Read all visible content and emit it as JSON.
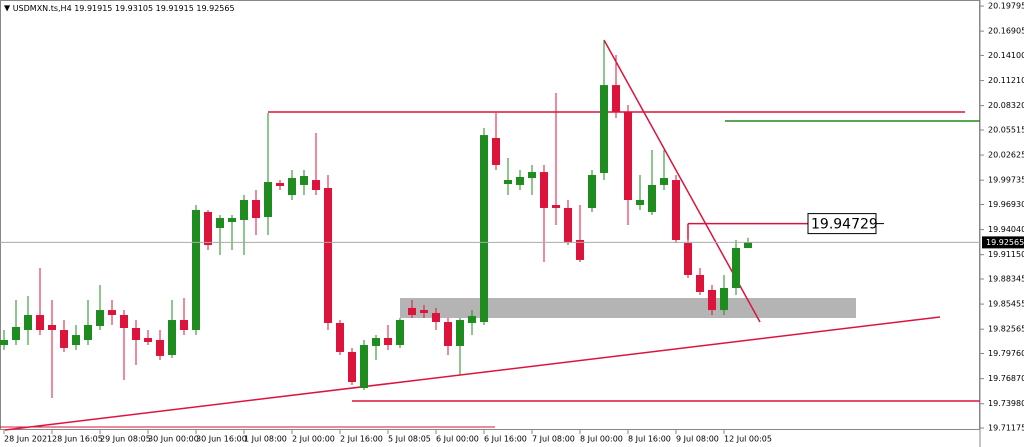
{
  "chart_data": {
    "type": "candlestick",
    "symbol": "USDMXN.ts,H4",
    "up_color": "#1e8c1e",
    "down_color": "#dc143c",
    "ylim": [
      19.7095,
      20.2049
    ],
    "yticks": [
      20.19795,
      20.16905,
      {
        "value": 20.141,
        "label": "20.14100"
      },
      {
        "value": 20.1121,
        "label": "20.11210"
      },
      {
        "value": 20.0832,
        "label": "20.08320"
      },
      20.05515,
      20.02625,
      19.99735,
      {
        "value": 19.9693,
        "label": "19.96930"
      },
      {
        "value": 19.9404,
        "label": "19.94040"
      },
      {
        "value": 19.9115,
        "label": "19.91150"
      },
      19.88345,
      19.85455,
      19.82565,
      {
        "value": 19.7976,
        "label": "19.79760"
      },
      {
        "value": 19.7687,
        "label": "19.76870"
      },
      {
        "value": 19.7398,
        "label": "19.73980"
      },
      19.71175
    ],
    "price_marker": 19.94729,
    "categories": [
      "28 Jun 2021",
      null,
      null,
      null,
      "28 Jun 16:05",
      null,
      null,
      null,
      "29 Jun 08:05",
      null,
      null,
      null,
      "30 Jun 00:00",
      null,
      null,
      null,
      "30 Jun 16:00",
      null,
      null,
      null,
      "1 Jul 08:00",
      null,
      null,
      null,
      "2 Jul 00:00",
      null,
      null,
      null,
      "2 Jul 16:00",
      null,
      null,
      null,
      "5 Jul 08:05",
      null,
      null,
      null,
      "6 Jul 00:00",
      null,
      null,
      null,
      "6 Jul 16:00",
      null,
      null,
      null,
      "7 Jul 08:00",
      null,
      null,
      null,
      "8 Jul 00:00",
      null,
      null,
      null,
      "8 Jul 16:00",
      null,
      null,
      null,
      "9 Jul 08:00",
      null,
      null,
      null,
      "12 Jul 00:05",
      null,
      null
    ],
    "ohlc": [
      [
        19.8074,
        19.8247,
        19.8017,
        19.8132
      ],
      [
        19.8132,
        19.8593,
        19.8074,
        19.8282
      ],
      [
        19.8247,
        19.8639,
        19.8074,
        19.842
      ],
      [
        19.842,
        19.8961,
        19.8189,
        19.8247
      ],
      [
        19.8305,
        19.8593,
        19.7464,
        19.8247
      ],
      [
        19.8247,
        19.8362,
        19.7994,
        19.804
      ],
      [
        19.8074,
        19.8305,
        19.8017,
        19.8189
      ],
      [
        19.8132,
        19.8593,
        19.8074,
        19.8305
      ],
      [
        19.8293,
        19.8766,
        19.8247,
        19.8477
      ],
      [
        19.8477,
        19.8593,
        19.8305,
        19.842
      ],
      [
        19.842,
        19.8477,
        19.7671,
        19.827
      ],
      [
        19.827,
        19.8362,
        19.7844,
        19.8132
      ],
      [
        19.8155,
        19.8247,
        19.8074,
        19.8109
      ],
      [
        19.8132,
        19.8247,
        19.7901,
        19.7948
      ],
      [
        19.7959,
        19.8593,
        19.7924,
        19.8362
      ],
      [
        19.8362,
        19.8616,
        19.8189,
        19.8247
      ],
      [
        19.8247,
        19.9687,
        19.8189,
        19.963
      ],
      [
        19.9607,
        19.963,
        19.9169,
        19.9226
      ],
      [
        19.9422,
        19.9572,
        19.9111,
        19.9537
      ],
      [
        19.9491,
        19.9572,
        19.9169,
        19.9537
      ],
      [
        19.9514,
        19.9802,
        19.9111,
        19.9745
      ],
      [
        19.9745,
        19.986,
        19.9342,
        19.9537
      ],
      [
        19.9549,
        20.0747,
        19.9342,
        19.9952
      ],
      [
        19.9941,
        19.9975,
        19.986,
        19.9906
      ],
      [
        19.9802,
        20.009,
        19.9745,
        19.9998
      ],
      [
        19.9918,
        20.009,
        19.9802,
        20.0021
      ],
      [
        19.9975,
        20.0516,
        19.9802,
        19.986
      ],
      [
        19.9883,
        20.0033,
        19.8247,
        19.8328
      ],
      [
        19.8328,
        19.8362,
        19.7959,
        19.7994
      ],
      [
        19.7994,
        19.804,
        19.7613,
        19.7648
      ],
      [
        19.7579,
        19.8132,
        19.7556,
        19.8074
      ],
      [
        19.8063,
        19.8189,
        19.7901,
        19.8155
      ],
      [
        19.8155,
        19.8305,
        19.8017,
        19.8074
      ],
      [
        19.8074,
        19.8385,
        19.804,
        19.8362
      ],
      [
        19.8501,
        19.8593,
        19.8385,
        19.842
      ],
      [
        19.8477,
        19.8535,
        19.8385,
        19.8443
      ],
      [
        19.8443,
        19.8501,
        19.8247,
        19.8339
      ],
      [
        19.8339,
        19.8385,
        19.7959,
        19.8063
      ],
      [
        19.8063,
        19.8385,
        19.7729,
        19.8362
      ],
      [
        19.8328,
        19.8477,
        19.8189,
        19.8408
      ],
      [
        19.8339,
        20.0574,
        19.8305,
        20.0493
      ],
      [
        20.0459,
        20.0747,
        20.009,
        20.0148
      ],
      [
        19.9929,
        20.0229,
        19.9802,
        19.9975
      ],
      [
        19.9918,
        20.009,
        19.986,
        20.001
      ],
      [
        19.9998,
        20.0148,
        19.9802,
        20.0067
      ],
      [
        20.0067,
        20.0148,
        19.903,
        19.9653
      ],
      [
        19.9687,
        20.0977,
        19.9457,
        19.9653
      ],
      [
        19.9653,
        19.9745,
        19.9226,
        19.9261
      ],
      [
        19.9284,
        19.9687,
        19.903,
        19.9054
      ],
      [
        19.9653,
        20.009,
        19.9607,
        20.0033
      ],
      [
        20.0056,
        20.1588,
        19.9975,
        20.1069
      ],
      [
        20.1069,
        20.1415,
        20.0689,
        20.0759
      ],
      [
        20.0759,
        20.0839,
        19.9457,
        19.9745
      ],
      [
        19.9687,
        20.0033,
        19.963,
        19.9745
      ],
      [
        19.9607,
        20.0321,
        19.9572,
        19.9918
      ],
      [
        19.9918,
        20.0321,
        19.986,
        19.9998
      ],
      [
        19.9975,
        20.0033,
        19.9249,
        19.9284
      ],
      [
        19.9249,
        19.9342,
        19.8846,
        19.8881
      ],
      [
        19.8881,
        19.8961,
        19.865,
        19.8685
      ],
      [
        19.8708,
        19.8766,
        19.842,
        19.8477
      ],
      [
        19.8477,
        19.8881,
        19.842,
        19.8731
      ],
      [
        19.8731,
        19.9284,
        19.865,
        19.9192
      ],
      [
        19.91915,
        19.93105,
        19.91915,
        19.92565
      ]
    ]
  }
}
